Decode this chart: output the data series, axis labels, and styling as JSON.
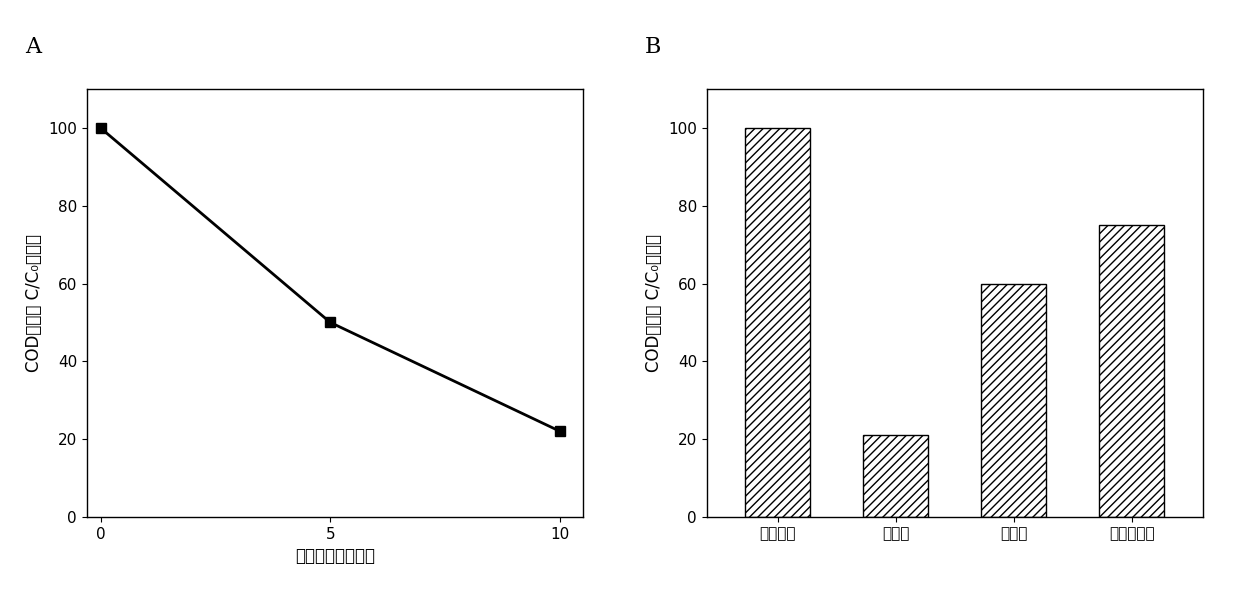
{
  "panel_A": {
    "label": "A",
    "x": [
      0,
      5,
      10
    ],
    "y": [
      100,
      50,
      22
    ],
    "xlabel": "降解时间（分钟）",
    "ylabel": "COD浓度比 C/C₀（％）",
    "ylim": [
      0,
      110
    ],
    "xlim": [
      -0.3,
      10.5
    ],
    "xticks": [
      0,
      5,
      10
    ],
    "yticks": [
      0,
      20,
      40,
      60,
      80,
      100
    ],
    "marker": "s",
    "markersize": 7,
    "linewidth": 2.0,
    "color": "#000000"
  },
  "panel_B": {
    "label": "B",
    "categories": [
      "印染废水",
      "本发明",
      "浸泡法",
      "普通水热法"
    ],
    "values": [
      100,
      21,
      60,
      75
    ],
    "ylabel": "COD浓度比 C/C₀（％）",
    "ylim": [
      0,
      110
    ],
    "yticks": [
      0,
      20,
      40,
      60,
      80,
      100
    ],
    "bar_color": "#ffffff",
    "bar_edgecolor": "#000000",
    "hatch": "////",
    "bar_width": 0.55
  },
  "background_color": "#ffffff",
  "font_size_label": 12,
  "font_size_tick": 11,
  "font_size_panel": 16
}
